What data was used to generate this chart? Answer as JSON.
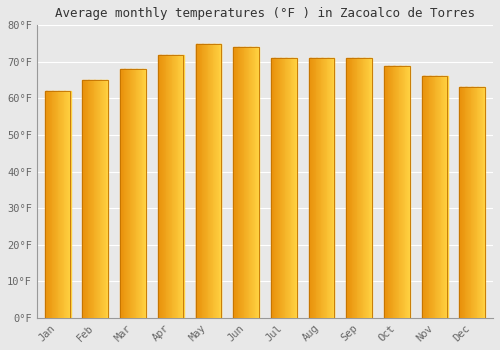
{
  "title": "Average monthly temperatures (°F ) in Zacoalco de Torres",
  "months": [
    "Jan",
    "Feb",
    "Mar",
    "Apr",
    "May",
    "Jun",
    "Jul",
    "Aug",
    "Sep",
    "Oct",
    "Nov",
    "Dec"
  ],
  "values": [
    62,
    65,
    68,
    72,
    75,
    74,
    71,
    71,
    71,
    69,
    66,
    63
  ],
  "ylim": [
    0,
    80
  ],
  "yticks": [
    0,
    10,
    20,
    30,
    40,
    50,
    60,
    70,
    80
  ],
  "ytick_labels": [
    "0°F",
    "10°F",
    "20°F",
    "30°F",
    "40°F",
    "50°F",
    "60°F",
    "70°F",
    "80°F"
  ],
  "background_color": "#e8e8e8",
  "grid_color": "#ffffff",
  "title_fontsize": 9,
  "tick_fontsize": 7.5,
  "bar_color_left": "#E8900A",
  "bar_color_right": "#FFD040",
  "bar_edge_color": "#C07000",
  "bar_width": 0.68
}
